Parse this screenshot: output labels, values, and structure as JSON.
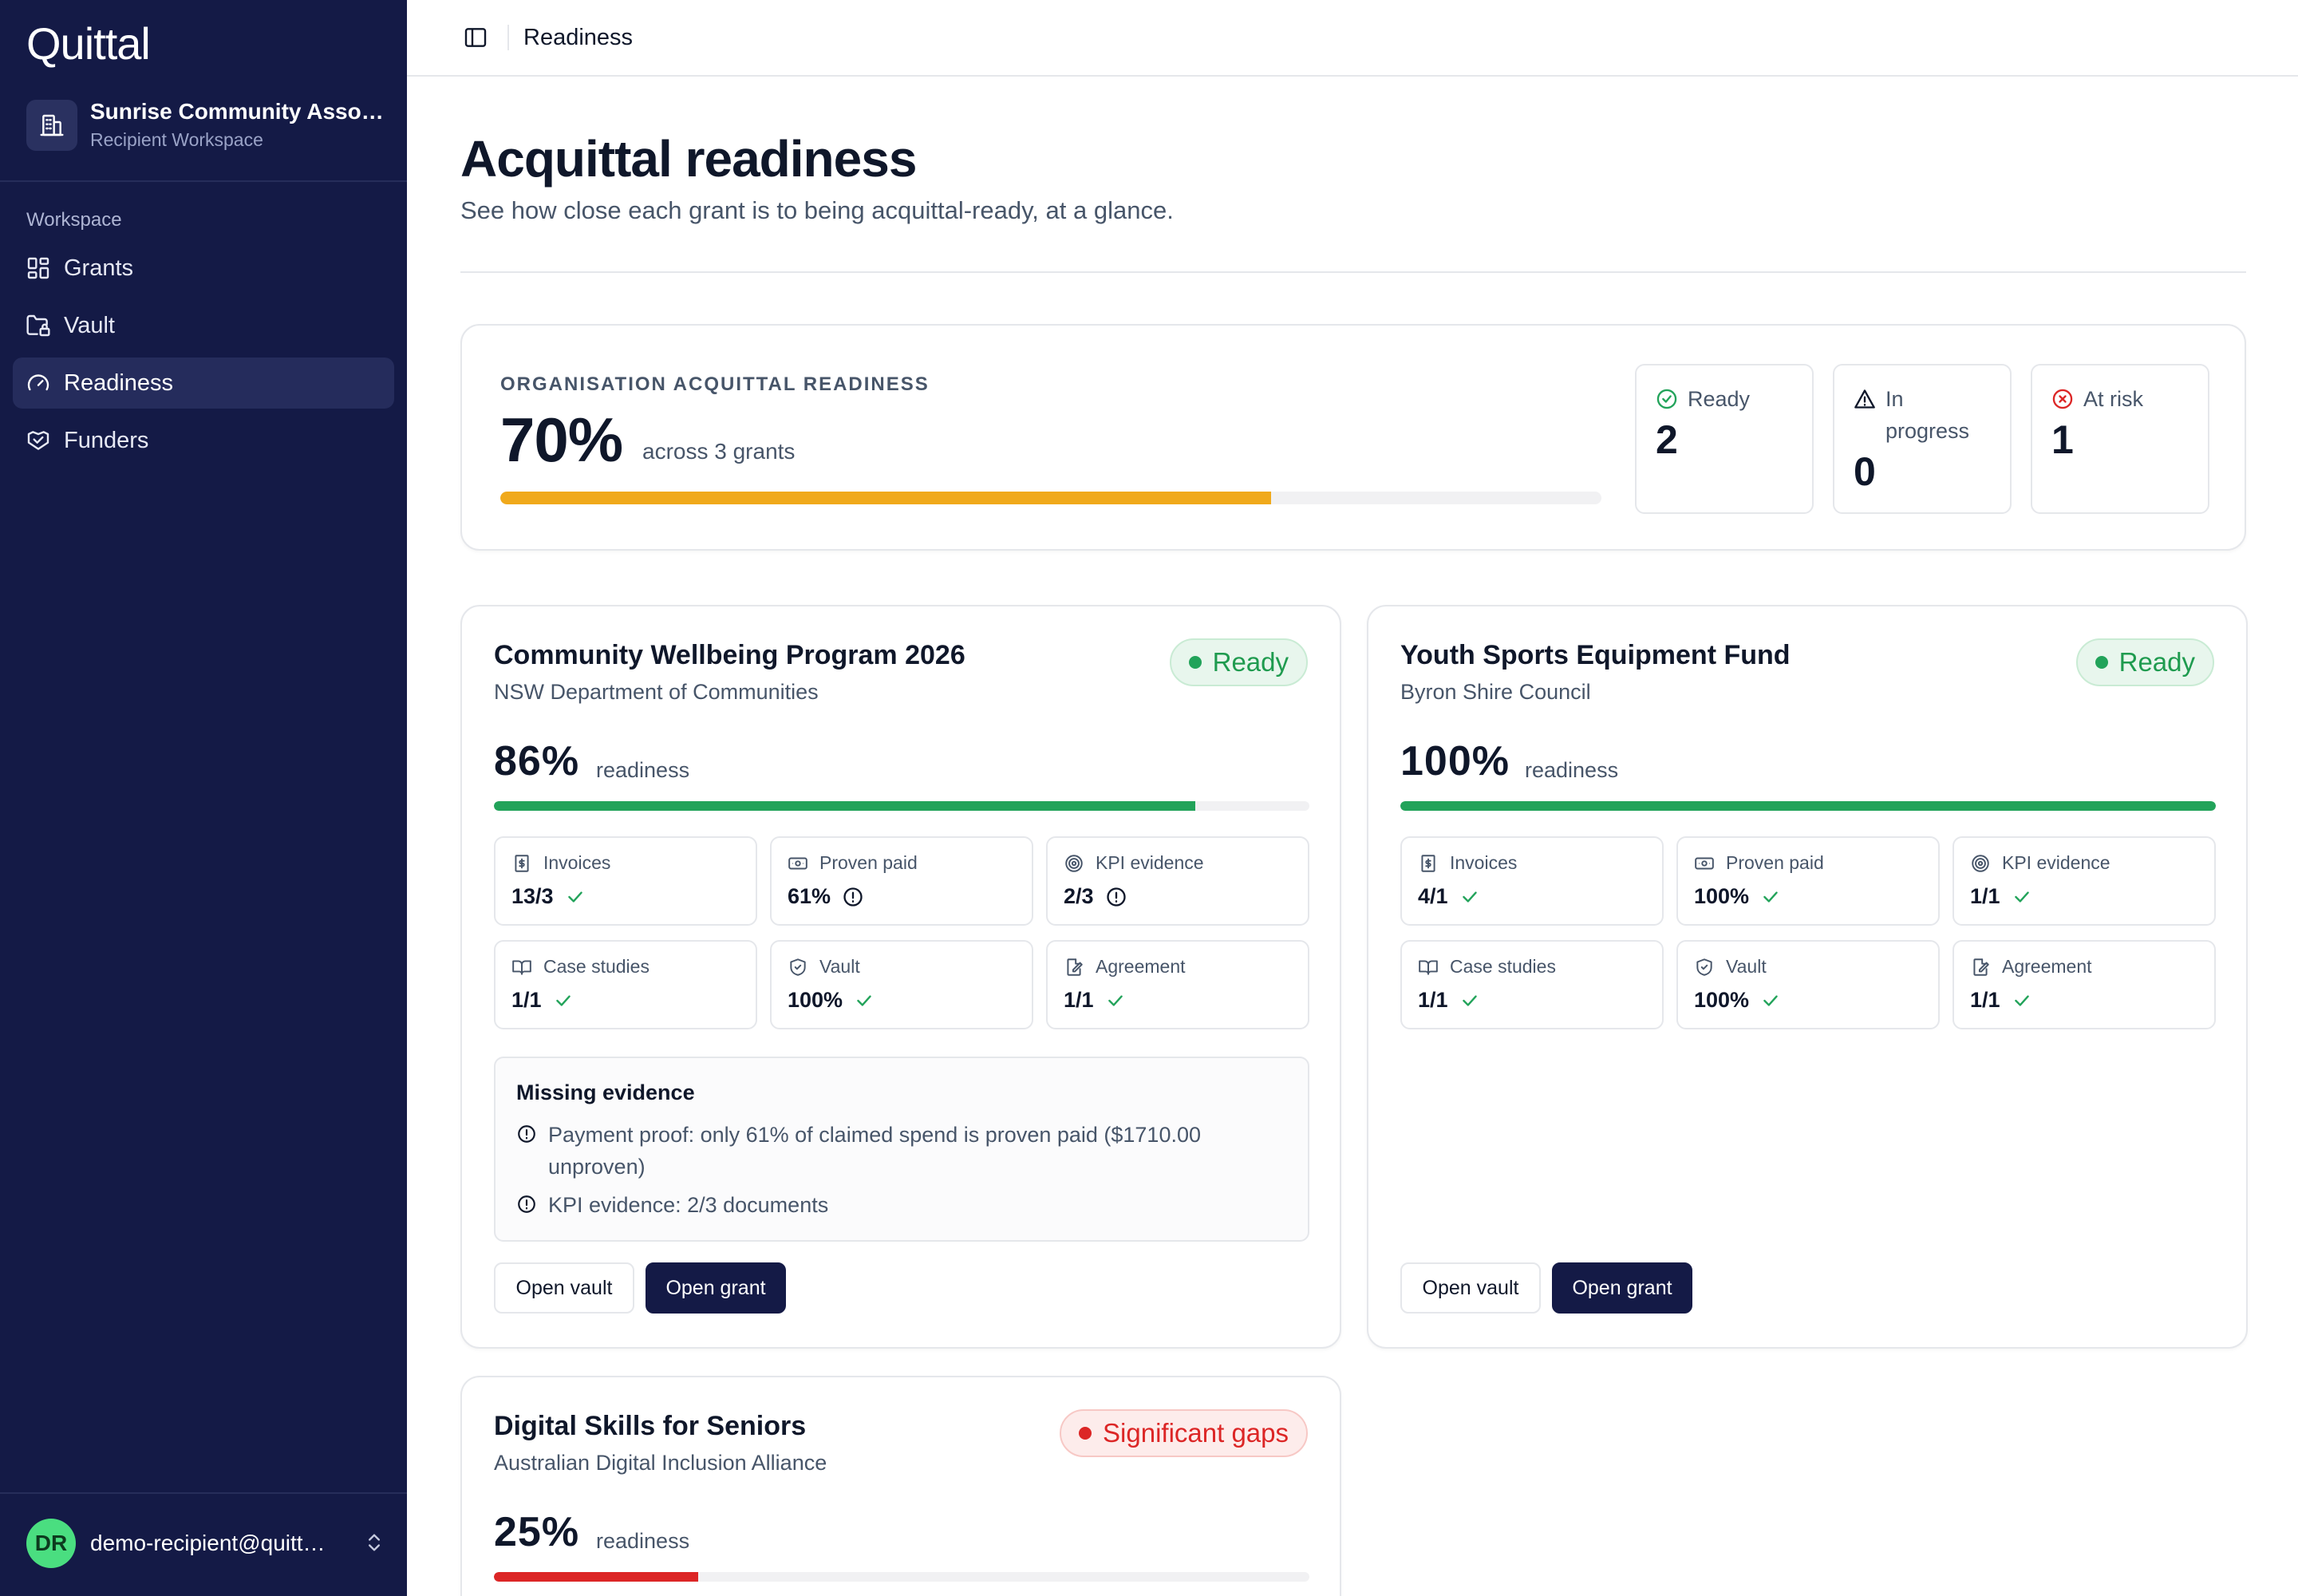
{
  "app": {
    "logo": "Quittal"
  },
  "org": {
    "name": "Sunrise Community Association",
    "subtitle": "Recipient Workspace"
  },
  "sidebar": {
    "section": "Workspace",
    "items": [
      {
        "label": "Grants",
        "icon": "dashboard-grid-icon",
        "active": false
      },
      {
        "label": "Vault",
        "icon": "folder-lock-icon",
        "active": false
      },
      {
        "label": "Readiness",
        "icon": "gauge-icon",
        "active": true
      },
      {
        "label": "Funders",
        "icon": "handshake-icon",
        "active": false
      }
    ]
  },
  "user": {
    "initials": "DR",
    "email": "demo-recipient@quittal.com"
  },
  "topbar": {
    "breadcrumb": "Readiness"
  },
  "page": {
    "title": "Acquittal readiness",
    "subtitle": "See how close each grant is to being acquittal-ready, at a glance."
  },
  "summary": {
    "label": "ORGANISATION ACQUITTAL READINESS",
    "percent": "70%",
    "percent_value": 70,
    "across": "across 3 grants",
    "bar_color": "#f0a91b",
    "stats": {
      "ready": {
        "label": "Ready",
        "value": "2"
      },
      "in_progress": {
        "label": "In progress",
        "value": "0"
      },
      "at_risk": {
        "label": "At risk",
        "value": "1"
      }
    }
  },
  "colors": {
    "accent": "#141a46",
    "ready": "#22a35a",
    "warning": "#f0a91b",
    "danger": "#dc2626"
  },
  "grants": [
    {
      "title": "Community Wellbeing Program 2026",
      "funder": "NSW Department of Communities",
      "status": "Ready",
      "percent": "86%",
      "percent_value": 86,
      "readiness_label": "readiness",
      "bar_color": "#22a35a",
      "metrics": {
        "invoices": {
          "label": "Invoices",
          "value": "13/3",
          "ok": true
        },
        "proven_paid": {
          "label": "Proven paid",
          "value": "61%",
          "ok": false
        },
        "kpi": {
          "label": "KPI evidence",
          "value": "2/3",
          "ok": false
        },
        "case_studies": {
          "label": "Case studies",
          "value": "1/1",
          "ok": true
        },
        "vault": {
          "label": "Vault",
          "value": "100%",
          "ok": true
        },
        "agreement": {
          "label": "Agreement",
          "value": "1/1",
          "ok": true
        }
      },
      "missing": {
        "title": "Missing evidence",
        "items": [
          "Payment proof: only 61% of claimed spend is proven paid ($1710.00 unproven)",
          "KPI evidence: 2/3 documents"
        ]
      },
      "buttons": {
        "vault": "Open vault",
        "grant": "Open grant"
      }
    },
    {
      "title": "Youth Sports Equipment Fund",
      "funder": "Byron Shire Council",
      "status": "Ready",
      "percent": "100%",
      "percent_value": 100,
      "readiness_label": "readiness",
      "bar_color": "#22a35a",
      "metrics": {
        "invoices": {
          "label": "Invoices",
          "value": "4/1",
          "ok": true
        },
        "proven_paid": {
          "label": "Proven paid",
          "value": "100%",
          "ok": true
        },
        "kpi": {
          "label": "KPI evidence",
          "value": "1/1",
          "ok": true
        },
        "case_studies": {
          "label": "Case studies",
          "value": "1/1",
          "ok": true
        },
        "vault": {
          "label": "Vault",
          "value": "100%",
          "ok": true
        },
        "agreement": {
          "label": "Agreement",
          "value": "1/1",
          "ok": true
        }
      },
      "buttons": {
        "vault": "Open vault",
        "grant": "Open grant"
      }
    },
    {
      "title": "Digital Skills for Seniors",
      "funder": "Australian Digital Inclusion Alliance",
      "status": "Significant gaps",
      "percent": "25%",
      "percent_value": 25,
      "readiness_label": "readiness",
      "bar_color": "#dc2626"
    }
  ]
}
